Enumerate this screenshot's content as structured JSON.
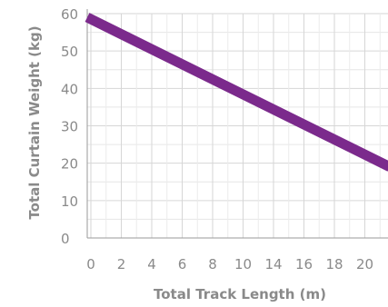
{
  "chart_data": {
    "type": "line",
    "title": "",
    "xlabel": "Total Track Length (m)",
    "ylabel": "Total Curtain Weight (kg)",
    "x_ticks": [
      "0",
      "2",
      "4",
      "6",
      "8",
      "10",
      "14",
      "16",
      "18",
      "20"
    ],
    "y_ticks": [
      "0",
      "10",
      "20",
      "30",
      "40",
      "50",
      "60"
    ],
    "ylim": [
      0,
      60
    ],
    "grid": true,
    "series": [
      {
        "color": "#7b2a8c",
        "x_start": 0,
        "y_start": 59,
        "y_at_right_edge": 19
      }
    ]
  }
}
